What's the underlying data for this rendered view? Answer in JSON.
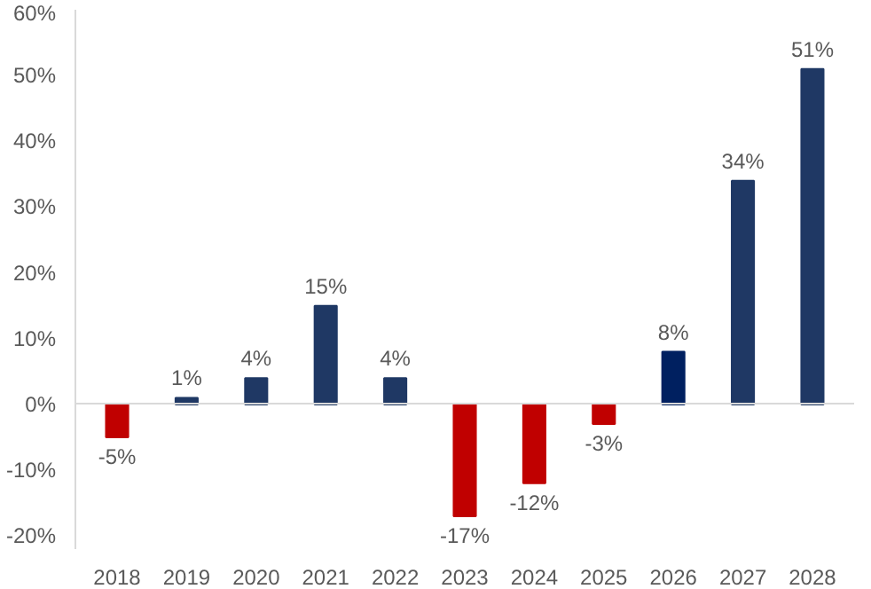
{
  "chart_data": {
    "type": "bar",
    "categories": [
      "2018",
      "2019",
      "2020",
      "2021",
      "2022",
      "2023",
      "2024",
      "2025",
      "2026",
      "2027",
      "2028"
    ],
    "values": [
      -5,
      1,
      4,
      15,
      4,
      -17,
      -12,
      -3,
      8,
      34,
      51
    ],
    "colors": [
      "#c00000",
      "#1f3864",
      "#1f3864",
      "#1f3864",
      "#1f3864",
      "#c00000",
      "#c00000",
      "#c00000",
      "#002060",
      "#1f3864",
      "#1f3864"
    ],
    "value_labels": [
      "-5%",
      "1%",
      "4%",
      "15%",
      "4%",
      "-17%",
      "-12%",
      "-3%",
      "8%",
      "34%",
      "51%"
    ],
    "ylim": [
      -22,
      60
    ],
    "yticks": [
      {
        "value": -20,
        "label": "-20%"
      },
      {
        "value": -10,
        "label": "-10%"
      },
      {
        "value": 0,
        "label": "0%"
      },
      {
        "value": 10,
        "label": "10%"
      },
      {
        "value": 20,
        "label": "20%"
      },
      {
        "value": 30,
        "label": "30%"
      },
      {
        "value": 40,
        "label": "40%"
      },
      {
        "value": 50,
        "label": "50%"
      },
      {
        "value": 60,
        "label": "60%"
      }
    ]
  }
}
